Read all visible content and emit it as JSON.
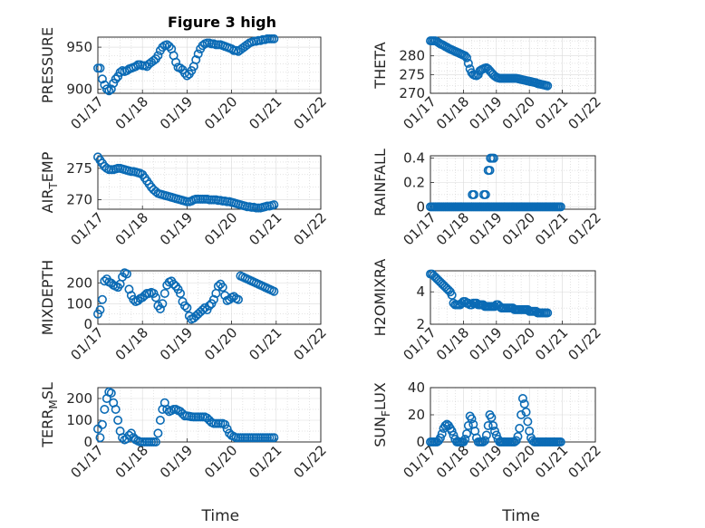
{
  "figure_title": "Figure 3 high",
  "colors": {
    "marker": "#0b6bb5",
    "axes": "#262626"
  },
  "x_tick_labels": [
    "01/17",
    "01/18",
    "01/19",
    "01/20",
    "01/21",
    "01/22"
  ],
  "chart_data": [
    {
      "type": "scatter",
      "ylabel": "PRESSURE",
      "xlabel": "",
      "xlim": [
        0,
        5
      ],
      "ylim": [
        895,
        962
      ],
      "yticks": [
        900,
        950
      ],
      "minor_y": [
        910,
        920,
        930,
        940,
        960
      ],
      "x": [
        0,
        0.05,
        0.1,
        0.15,
        0.2,
        0.25,
        0.3,
        0.35,
        0.4,
        0.45,
        0.5,
        0.55,
        0.6,
        0.65,
        0.7,
        0.75,
        0.8,
        0.85,
        0.9,
        0.95,
        1.0,
        1.05,
        1.1,
        1.15,
        1.2,
        1.25,
        1.3,
        1.35,
        1.4,
        1.45,
        1.5,
        1.55,
        1.6,
        1.65,
        1.7,
        1.75,
        1.8,
        1.85,
        1.9,
        1.95,
        2.0,
        2.05,
        2.1,
        2.15,
        2.2,
        2.25,
        2.3,
        2.35,
        2.4,
        2.45,
        2.5,
        2.55,
        2.6,
        2.65,
        2.7,
        2.75,
        2.8,
        2.85,
        2.9,
        2.95,
        3.0,
        3.05,
        3.1,
        3.15,
        3.2,
        3.25,
        3.3,
        3.35,
        3.4,
        3.45,
        3.5,
        3.55,
        3.6,
        3.65,
        3.7,
        3.75,
        3.8,
        3.85,
        3.9,
        3.95
      ],
      "y": [
        925,
        925,
        912,
        905,
        900,
        898,
        900,
        907,
        912,
        915,
        920,
        922,
        921,
        922,
        924,
        925,
        926,
        927,
        929,
        929,
        928,
        928,
        927,
        930,
        932,
        934,
        936,
        940,
        946,
        950,
        952,
        953,
        951,
        948,
        940,
        932,
        926,
        925,
        923,
        919,
        916,
        918,
        922,
        927,
        935,
        942,
        948,
        952,
        954,
        955,
        955,
        954,
        954,
        953,
        953,
        953,
        952,
        951,
        950,
        949,
        948,
        946,
        946,
        945,
        947,
        949,
        951,
        953,
        955,
        956,
        957,
        957,
        958,
        958,
        959,
        959,
        960,
        960,
        960,
        960
      ]
    },
    {
      "type": "scatter",
      "ylabel": "THETA",
      "xlabel": "",
      "xlim": [
        0,
        5
      ],
      "ylim": [
        270,
        285
      ],
      "yticks": [
        270,
        275,
        280
      ],
      "minor_y": [
        272,
        274,
        276,
        278,
        282,
        284
      ],
      "x": [
        0,
        0.05,
        0.1,
        0.15,
        0.2,
        0.25,
        0.3,
        0.35,
        0.4,
        0.45,
        0.5,
        0.55,
        0.6,
        0.65,
        0.7,
        0.75,
        0.8,
        0.85,
        0.9,
        0.95,
        1.0,
        1.05,
        1.1,
        1.15,
        1.2,
        1.25,
        1.3,
        1.35,
        1.4,
        1.45,
        1.5,
        1.55,
        1.6,
        1.65,
        1.7,
        1.75,
        1.8,
        1.85,
        1.9,
        1.95,
        2.0,
        2.05,
        2.1,
        2.15,
        2.2,
        2.25,
        2.3,
        2.35,
        2.4,
        2.45,
        2.5,
        2.55,
        2.6,
        2.65,
        2.7,
        2.75,
        2.8,
        2.85,
        2.9,
        2.95,
        3.0,
        3.05,
        3.1,
        3.15,
        3.2,
        3.25,
        3.3,
        3.35,
        3.4,
        3.45,
        3.5,
        3.55
      ],
      "y": [
        284,
        284,
        284,
        284,
        283.8,
        283.5,
        283.2,
        283,
        282.8,
        282.5,
        282.3,
        282,
        281.8,
        281.6,
        281.4,
        281.2,
        281,
        280.8,
        280.6,
        280.4,
        280.2,
        280,
        279.5,
        278,
        276.5,
        275.5,
        275,
        274.8,
        274.7,
        275,
        276,
        276.3,
        276.5,
        276.7,
        276.8,
        276.5,
        276,
        275.5,
        275,
        274.6,
        274.3,
        274.1,
        274,
        274,
        274,
        274,
        274,
        274,
        274,
        274,
        274,
        274,
        274,
        273.9,
        273.8,
        273.7,
        273.6,
        273.5,
        273.4,
        273.3,
        273.2,
        273.1,
        273,
        272.9,
        272.8,
        272.6,
        272.5,
        272.4,
        272.3,
        272.2,
        272.1,
        272
      ]
    },
    {
      "type": "scatter",
      "ylabel": "AIR_TEMP",
      "xlabel": "",
      "xlim": [
        0,
        5
      ],
      "ylim": [
        268.5,
        277
      ],
      "yticks": [
        270,
        275
      ],
      "minor_y": [
        272,
        274,
        276
      ],
      "x": [
        0,
        0.05,
        0.1,
        0.15,
        0.2,
        0.25,
        0.3,
        0.35,
        0.4,
        0.45,
        0.5,
        0.55,
        0.6,
        0.65,
        0.7,
        0.75,
        0.8,
        0.85,
        0.9,
        0.95,
        1.0,
        1.05,
        1.1,
        1.15,
        1.2,
        1.25,
        1.3,
        1.35,
        1.4,
        1.45,
        1.5,
        1.55,
        1.6,
        1.65,
        1.7,
        1.75,
        1.8,
        1.85,
        1.9,
        1.95,
        2.0,
        2.05,
        2.1,
        2.15,
        2.2,
        2.25,
        2.3,
        2.35,
        2.4,
        2.45,
        2.5,
        2.55,
        2.6,
        2.65,
        2.7,
        2.75,
        2.8,
        2.85,
        2.9,
        2.95,
        3.0,
        3.05,
        3.1,
        3.15,
        3.2,
        3.25,
        3.3,
        3.35,
        3.4,
        3.45,
        3.5,
        3.55,
        3.6,
        3.65,
        3.7,
        3.75,
        3.8,
        3.85,
        3.9,
        3.95
      ],
      "y": [
        276.8,
        276.3,
        275.8,
        275.3,
        275,
        274.8,
        274.8,
        274.8,
        274.9,
        275,
        275,
        274.9,
        274.8,
        274.7,
        274.6,
        274.5,
        274.5,
        274.4,
        274.3,
        274.2,
        274,
        273.5,
        273,
        272.5,
        272,
        271.6,
        271.3,
        271,
        270.9,
        270.8,
        270.7,
        270.6,
        270.5,
        270.4,
        270.3,
        270.2,
        270.1,
        270,
        269.9,
        269.8,
        269.7,
        269.7,
        269.8,
        270,
        270.1,
        270.1,
        270.1,
        270.1,
        270.1,
        270.1,
        270,
        270,
        270,
        270,
        269.9,
        269.9,
        269.8,
        269.8,
        269.7,
        269.7,
        269.6,
        269.5,
        269.4,
        269.3,
        269.2,
        269.1,
        269,
        268.9,
        268.9,
        268.8,
        268.8,
        268.7,
        268.7,
        268.7,
        268.8,
        268.9,
        269,
        269,
        269.1,
        269.2
      ]
    },
    {
      "type": "scatter",
      "ylabel": "RAINFALL",
      "xlabel": "",
      "xlim": [
        0,
        5
      ],
      "ylim": [
        -0.02,
        0.42
      ],
      "yticks": [
        0,
        0.2,
        0.4
      ],
      "minor_y": [
        0.1,
        0.3
      ],
      "x": [
        0,
        0.05,
        0.1,
        0.15,
        0.2,
        0.25,
        0.3,
        0.35,
        0.4,
        0.45,
        0.5,
        0.55,
        0.6,
        0.65,
        0.7,
        0.75,
        0.8,
        0.85,
        0.9,
        0.95,
        1.0,
        1.05,
        1.1,
        1.15,
        1.2,
        1.25,
        1.3,
        1.35,
        1.4,
        1.45,
        1.5,
        1.55,
        1.6,
        1.65,
        1.7,
        1.75,
        1.8,
        1.85,
        1.9,
        1.95,
        2.0,
        2.05,
        2.1,
        2.15,
        2.2,
        2.25,
        2.3,
        2.35,
        2.4,
        2.45,
        2.5,
        2.55,
        2.6,
        2.65,
        2.7,
        2.75,
        2.8,
        2.85,
        2.9,
        2.95,
        3.0,
        3.05,
        3.1,
        3.15,
        3.2,
        3.25,
        3.3,
        3.35,
        3.4,
        3.45,
        3.5,
        3.55,
        3.6,
        3.65,
        3.7,
        3.75,
        3.8,
        3.85,
        3.9,
        3.95,
        1.27,
        1.32,
        1.62,
        1.67,
        1.75,
        1.8,
        1.82,
        1.87,
        1.92
      ],
      "y": [
        0,
        0,
        0,
        0,
        0,
        0,
        0,
        0,
        0,
        0,
        0,
        0,
        0,
        0,
        0,
        0,
        0,
        0,
        0,
        0,
        0,
        0,
        0,
        0,
        0,
        0,
        0,
        0,
        0,
        0,
        0,
        0,
        0,
        0,
        0,
        0,
        0,
        0,
        0,
        0,
        0,
        0,
        0,
        0,
        0,
        0,
        0,
        0,
        0,
        0,
        0,
        0,
        0,
        0,
        0,
        0,
        0,
        0,
        0,
        0,
        0,
        0,
        0,
        0,
        0,
        0,
        0,
        0,
        0,
        0,
        0,
        0,
        0,
        0,
        0,
        0,
        0,
        0,
        0,
        0,
        0.1,
        0.1,
        0.1,
        0.1,
        0.3,
        0.3,
        0.4,
        0.4,
        0.4
      ]
    },
    {
      "type": "scatter",
      "ylabel": "MIXDEPTH",
      "xlabel": "",
      "xlim": [
        0,
        5
      ],
      "ylim": [
        0,
        260
      ],
      "yticks": [
        0,
        100,
        200
      ],
      "minor_y": [
        50,
        150,
        250
      ],
      "x": [
        0,
        0.05,
        0.1,
        0.15,
        0.2,
        0.25,
        0.3,
        0.35,
        0.4,
        0.45,
        0.5,
        0.55,
        0.6,
        0.65,
        0.7,
        0.75,
        0.8,
        0.85,
        0.9,
        0.95,
        1.0,
        1.05,
        1.1,
        1.15,
        1.2,
        1.25,
        1.3,
        1.35,
        1.4,
        1.45,
        1.5,
        1.55,
        1.6,
        1.65,
        1.7,
        1.75,
        1.8,
        1.85,
        1.9,
        1.95,
        2.0,
        2.05,
        2.1,
        2.15,
        2.2,
        2.25,
        2.3,
        2.35,
        2.4,
        2.45,
        2.5,
        2.55,
        2.6,
        2.65,
        2.7,
        2.75,
        2.8,
        2.85,
        2.9,
        2.95,
        3.0,
        3.05,
        3.1,
        3.15,
        3.2,
        3.25,
        3.3,
        3.35,
        3.4,
        3.45,
        3.5,
        3.55,
        3.6,
        3.65,
        3.7,
        3.75,
        3.8,
        3.85,
        3.9,
        3.95
      ],
      "y": [
        50,
        70,
        120,
        210,
        220,
        205,
        200,
        190,
        185,
        180,
        195,
        230,
        250,
        245,
        170,
        140,
        120,
        110,
        115,
        125,
        130,
        140,
        150,
        150,
        155,
        150,
        130,
        90,
        75,
        100,
        150,
        190,
        205,
        210,
        195,
        185,
        170,
        150,
        110,
        90,
        80,
        40,
        25,
        30,
        40,
        50,
        60,
        70,
        80,
        70,
        90,
        100,
        120,
        150,
        185,
        195,
        180,
        140,
        115,
        120,
        130,
        135,
        125,
        120,
        235,
        230,
        225,
        220,
        215,
        210,
        205,
        200,
        195,
        190,
        185,
        180,
        175,
        170,
        165,
        160
      ]
    },
    {
      "type": "scatter",
      "ylabel": "H2OMIXRA",
      "xlabel": "",
      "xlim": [
        0,
        5
      ],
      "ylim": [
        2,
        5.3
      ],
      "yticks": [
        2,
        4
      ],
      "minor_y": [
        3,
        5
      ],
      "x": [
        0,
        0.05,
        0.1,
        0.15,
        0.2,
        0.25,
        0.3,
        0.35,
        0.4,
        0.45,
        0.5,
        0.55,
        0.6,
        0.65,
        0.7,
        0.75,
        0.8,
        0.85,
        0.9,
        0.95,
        1.0,
        1.05,
        1.1,
        1.15,
        1.2,
        1.25,
        1.3,
        1.35,
        1.4,
        1.45,
        1.5,
        1.55,
        1.6,
        1.65,
        1.7,
        1.75,
        1.8,
        1.85,
        1.9,
        1.95,
        2.0,
        2.05,
        2.1,
        2.15,
        2.2,
        2.25,
        2.3,
        2.35,
        2.4,
        2.45,
        2.5,
        2.55,
        2.6,
        2.65,
        2.7,
        2.75,
        2.8,
        2.85,
        2.9,
        2.95,
        3.0,
        3.05,
        3.1,
        3.15,
        3.2,
        3.25,
        3.3,
        3.35,
        3.4,
        3.45,
        3.5,
        3.55
      ],
      "y": [
        5.1,
        5.1,
        5,
        4.9,
        4.8,
        4.7,
        4.6,
        4.5,
        4.4,
        4.3,
        4.2,
        4.1,
        4,
        3.8,
        3.3,
        3.2,
        3.2,
        3.2,
        3.2,
        3.3,
        3.4,
        3.4,
        3.3,
        3.3,
        3.2,
        3.2,
        3.3,
        3.3,
        3.3,
        3.2,
        3.2,
        3.2,
        3.2,
        3.1,
        3.1,
        3.1,
        3.1,
        3.1,
        3.1,
        3.1,
        3.2,
        3.2,
        3.1,
        3,
        3,
        3,
        3,
        3,
        3,
        3,
        3,
        2.9,
        2.9,
        2.9,
        2.9,
        2.9,
        2.9,
        2.9,
        2.9,
        2.9,
        2.8,
        2.8,
        2.8,
        2.8,
        2.8,
        2.7,
        2.7,
        2.7,
        2.7,
        2.7,
        2.7,
        2.7
      ]
    },
    {
      "type": "scatter",
      "ylabel": "TERR_MSL",
      "xlabel": "Time",
      "xlim": [
        0,
        5
      ],
      "ylim": [
        0,
        250
      ],
      "yticks": [
        0,
        100,
        200
      ],
      "minor_y": [
        50,
        150,
        250
      ],
      "x": [
        0,
        0.05,
        0.1,
        0.15,
        0.2,
        0.25,
        0.3,
        0.35,
        0.4,
        0.45,
        0.5,
        0.55,
        0.6,
        0.65,
        0.7,
        0.75,
        0.8,
        0.85,
        0.9,
        0.95,
        1.0,
        1.05,
        1.1,
        1.15,
        1.2,
        1.25,
        1.3,
        1.35,
        1.4,
        1.45,
        1.5,
        1.55,
        1.6,
        1.65,
        1.7,
        1.75,
        1.8,
        1.85,
        1.9,
        1.95,
        2.0,
        2.05,
        2.1,
        2.15,
        2.2,
        2.25,
        2.3,
        2.35,
        2.4,
        2.45,
        2.5,
        2.55,
        2.6,
        2.65,
        2.7,
        2.75,
        2.8,
        2.85,
        2.9,
        2.95,
        3.0,
        3.05,
        3.1,
        3.15,
        3.2,
        3.25,
        3.3,
        3.35,
        3.4,
        3.45,
        3.5,
        3.55,
        3.6,
        3.65,
        3.7,
        3.75,
        3.8,
        3.85,
        3.9,
        3.95
      ],
      "y": [
        60,
        20,
        80,
        150,
        200,
        230,
        225,
        180,
        150,
        100,
        50,
        20,
        10,
        15,
        30,
        40,
        20,
        10,
        5,
        0,
        0,
        0,
        0,
        0,
        0,
        0,
        0,
        40,
        100,
        150,
        180,
        150,
        140,
        145,
        150,
        150,
        145,
        140,
        130,
        120,
        120,
        118,
        116,
        115,
        115,
        115,
        115,
        115,
        115,
        110,
        100,
        90,
        85,
        85,
        85,
        85,
        85,
        80,
        60,
        40,
        30,
        25,
        20,
        20,
        20,
        20,
        20,
        20,
        20,
        20,
        20,
        20,
        20,
        20,
        20,
        20,
        20,
        20,
        20,
        20
      ]
    },
    {
      "type": "scatter",
      "ylabel": "SUN_FLUX",
      "xlabel": "Time",
      "xlim": [
        0,
        5
      ],
      "ylim": [
        0,
        40
      ],
      "yticks": [
        0,
        20,
        40
      ],
      "minor_y": [
        10,
        30
      ],
      "x": [
        0,
        0.05,
        0.1,
        0.15,
        0.2,
        0.25,
        0.3,
        0.35,
        0.4,
        0.45,
        0.5,
        0.55,
        0.6,
        0.65,
        0.7,
        0.75,
        0.8,
        0.85,
        0.9,
        0.95,
        1.0,
        1.05,
        1.1,
        1.15,
        1.2,
        1.25,
        1.3,
        1.35,
        1.4,
        1.45,
        1.5,
        1.55,
        1.6,
        1.65,
        1.7,
        1.75,
        1.8,
        1.85,
        1.9,
        1.95,
        2.0,
        2.05,
        2.1,
        2.15,
        2.2,
        2.25,
        2.3,
        2.35,
        2.4,
        2.45,
        2.5,
        2.55,
        2.6,
        2.65,
        2.7,
        2.75,
        2.8,
        2.85,
        2.9,
        2.95,
        3.0,
        3.05,
        3.1,
        3.15,
        3.2,
        3.25,
        3.3,
        3.35,
        3.4,
        3.45,
        3.5,
        3.55,
        3.6,
        3.65,
        3.7,
        3.75,
        3.8,
        3.85,
        3.9,
        3.95
      ],
      "y": [
        0,
        0,
        0,
        0,
        0,
        1,
        3,
        6,
        10,
        12,
        13,
        12,
        10,
        8,
        5,
        2,
        0,
        0,
        0,
        0,
        0,
        2,
        6,
        12,
        19,
        17,
        13,
        8,
        3,
        0,
        0,
        0,
        0,
        1,
        5,
        12,
        20,
        18,
        12,
        8,
        5,
        2,
        0,
        0,
        0,
        0,
        0,
        0,
        0,
        0,
        0,
        0,
        1,
        4,
        10,
        20,
        32,
        28,
        22,
        15,
        8,
        3,
        1,
        0,
        0,
        0,
        0,
        0,
        0,
        0,
        0,
        0,
        0,
        0,
        0,
        0,
        0,
        0,
        0,
        0
      ]
    }
  ]
}
